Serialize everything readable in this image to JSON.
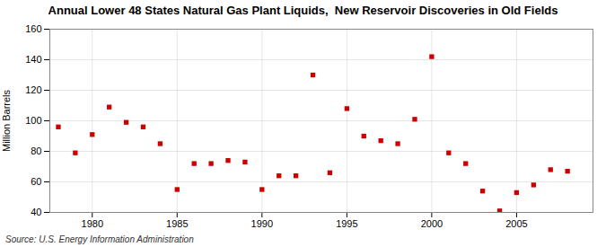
{
  "chart_data": {
    "type": "scatter",
    "title": "Annual Lower 48 States Natural Gas Plant Liquids,  New Reservoir Discoveries in Old Fields",
    "ylabel": "Million Barrels",
    "source": "Source: U.S. Energy Information Administration",
    "x": [
      1978,
      1979,
      1980,
      1981,
      1982,
      1983,
      1984,
      1985,
      1986,
      1987,
      1988,
      1989,
      1990,
      1991,
      1992,
      1993,
      1994,
      1995,
      1996,
      1997,
      1998,
      1999,
      2000,
      2001,
      2002,
      2003,
      2004,
      2005,
      2006,
      2007,
      2008
    ],
    "values": [
      96,
      79,
      91,
      109,
      99,
      96,
      85,
      55,
      72,
      72,
      74,
      73,
      55,
      64,
      64,
      130,
      66,
      108,
      90,
      87,
      85,
      101,
      142,
      79,
      72,
      54,
      41,
      53,
      58,
      68,
      67
    ],
    "color": "#CC0000",
    "marker": "square",
    "xlim": [
      1977.5,
      2009.5
    ],
    "ylim": [
      40,
      160
    ],
    "xticks": [
      1980,
      1985,
      1990,
      1995,
      2000,
      2005
    ],
    "yticks": [
      40,
      60,
      80,
      100,
      120,
      140,
      160
    ],
    "grid": true
  }
}
